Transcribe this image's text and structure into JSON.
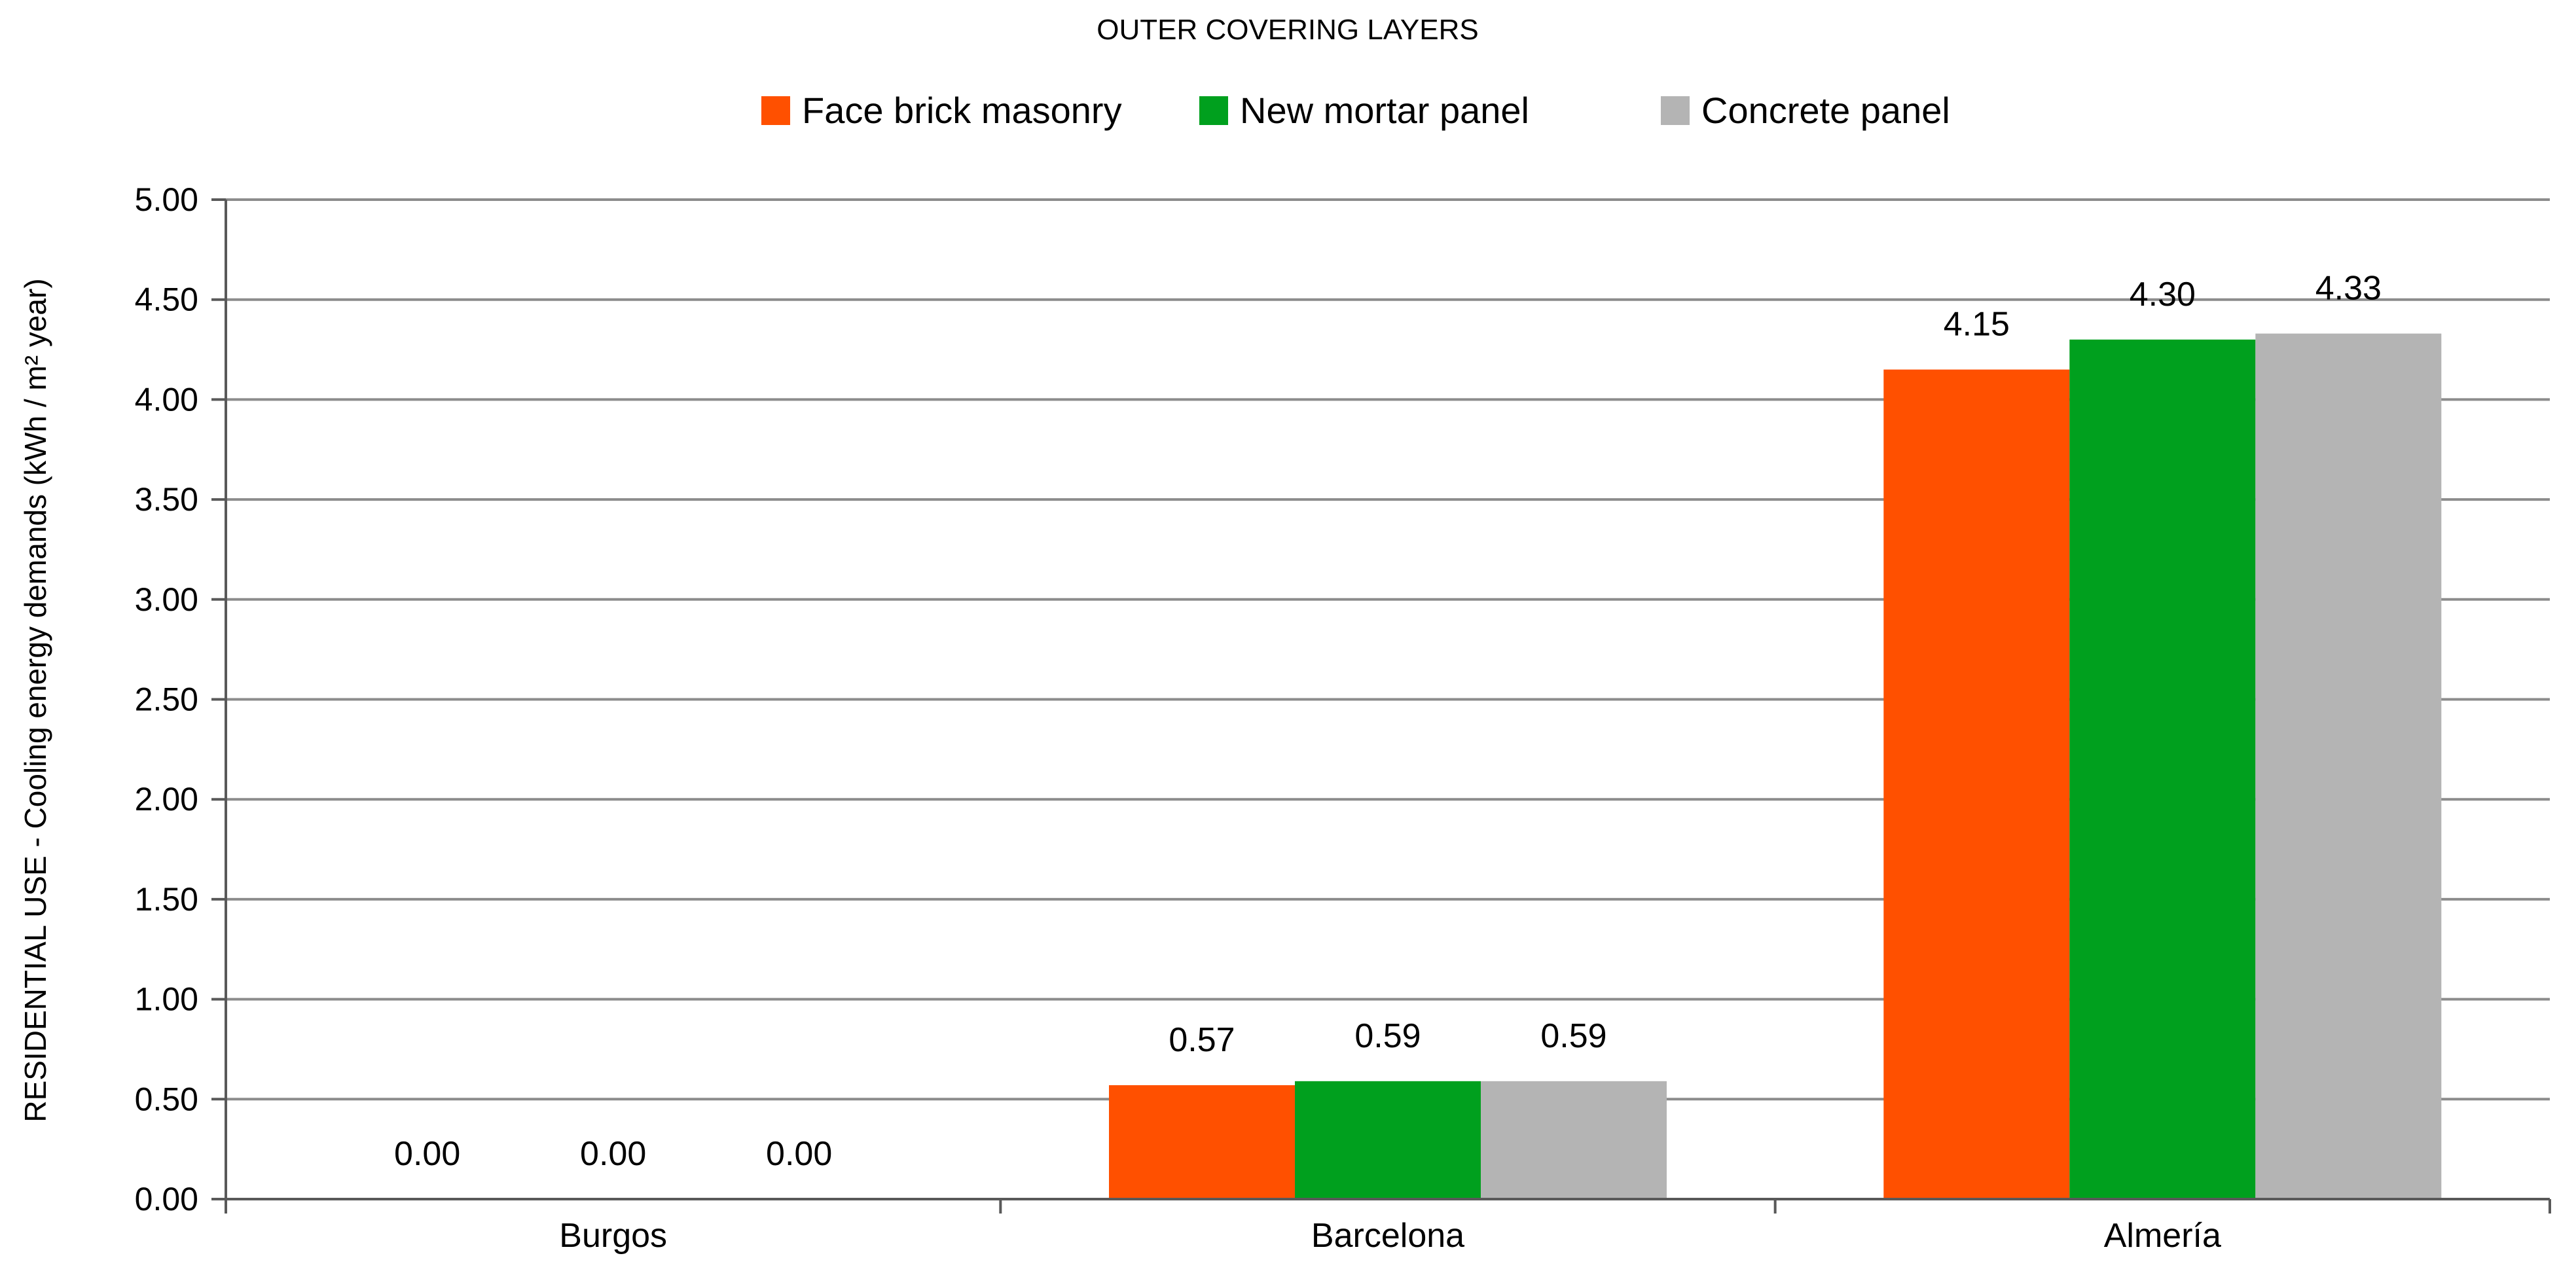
{
  "chart_data": {
    "type": "bar",
    "title": "OUTER COVERING LAYERS",
    "ylabel": "RESIDENTIAL USE - Cooling energy demands (kWh / m² year)",
    "xlabel": "",
    "categories": [
      "Burgos",
      "Barcelona",
      "Almería"
    ],
    "series": [
      {
        "name": "Face brick masonry",
        "color": "#FF5000",
        "values": [
          0.0,
          0.57,
          4.15
        ],
        "labels": [
          "0.00",
          "0.57",
          "4.15"
        ]
      },
      {
        "name": "New mortar panel",
        "color": "#00A01E",
        "values": [
          0.0,
          0.59,
          4.3
        ],
        "labels": [
          "0.00",
          "0.59",
          "4.30"
        ]
      },
      {
        "name": "Concrete panel",
        "color": "#B4B4B4",
        "values": [
          0.0,
          0.59,
          4.33
        ],
        "labels": [
          "0.00",
          "0.59",
          "4.33"
        ]
      }
    ],
    "ylim": [
      0,
      5
    ],
    "yticks": [
      "0.00",
      "0.50",
      "1.00",
      "1.50",
      "2.00",
      "2.50",
      "3.00",
      "3.50",
      "4.00",
      "4.50",
      "5.00"
    ],
    "grid": true,
    "legend_position": "top"
  }
}
